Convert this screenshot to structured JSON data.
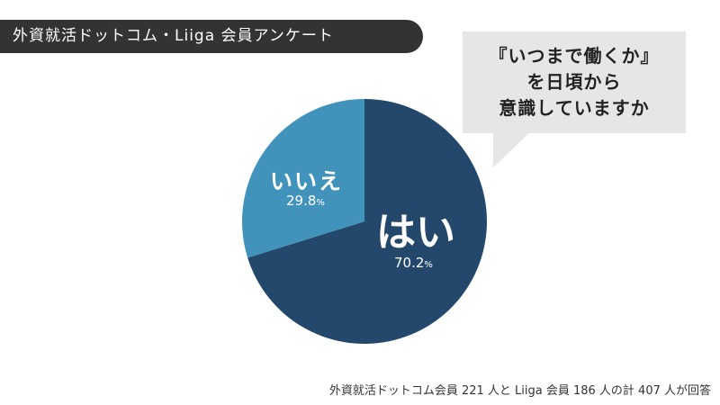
{
  "header": {
    "title": "外資就活ドットコム・Liiga 会員アンケート"
  },
  "question": {
    "lines": [
      "『いつまで働くか』",
      "を日頃から",
      "意識していますか"
    ]
  },
  "chart_data": {
    "type": "pie",
    "slices": [
      {
        "label": "はい",
        "value": 70.2,
        "value_text": "70.2",
        "unit": "%",
        "color": "#23486b"
      },
      {
        "label": "いいえ",
        "value": 29.8,
        "value_text": "29.8",
        "unit": "%",
        "color": "#4193bb"
      }
    ],
    "start": "12 o'clock",
    "direction": "clockwise"
  },
  "footnote": "外資就活ドットコム会員 221 人と Liiga 会員 186 人の計 407 人が回答"
}
